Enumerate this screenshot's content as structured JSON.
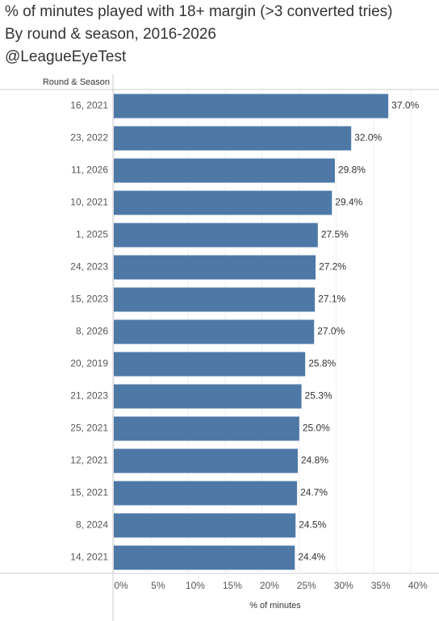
{
  "chart_data": {
    "type": "bar",
    "orientation": "horizontal",
    "title": "% of minutes played with 18+ margin (>3 converted tries)",
    "subtitle": "By round & season, 2016-2026",
    "credit": "@LeagueEyeTest",
    "row_header": "Round & Season",
    "x_label": "% of minutes",
    "categories": [
      "16, 2021",
      "23, 2022",
      "11, 2026",
      "10, 2021",
      "1, 2025",
      "24, 2023",
      "15, 2023",
      "8, 2026",
      "20, 2019",
      "21, 2023",
      "25, 2021",
      "12, 2021",
      "15, 2021",
      "8, 2024",
      "14, 2021"
    ],
    "values": [
      37.0,
      32.0,
      29.8,
      29.4,
      27.5,
      27.2,
      27.1,
      27.0,
      25.8,
      25.3,
      25.0,
      24.8,
      24.7,
      24.5,
      24.4
    ],
    "value_labels": [
      "37.0%",
      "32.0%",
      "29.8%",
      "29.4%",
      "27.5%",
      "27.2%",
      "27.1%",
      "27.0%",
      "25.8%",
      "25.3%",
      "25.0%",
      "24.8%",
      "24.7%",
      "24.5%",
      "24.4%"
    ],
    "color": "#4e79a7",
    "xlim": [
      0,
      43.4
    ],
    "xticks": [
      {
        "value": 0,
        "label": "0%"
      },
      {
        "value": 5,
        "label": "5%"
      },
      {
        "value": 10,
        "label": "10%"
      },
      {
        "value": 15,
        "label": "15%"
      },
      {
        "value": 20,
        "label": "20%"
      },
      {
        "value": 25,
        "label": "25%"
      },
      {
        "value": 30,
        "label": "30%"
      },
      {
        "value": 35,
        "label": "35%"
      },
      {
        "value": 40,
        "label": "40%"
      }
    ],
    "grid": true
  }
}
